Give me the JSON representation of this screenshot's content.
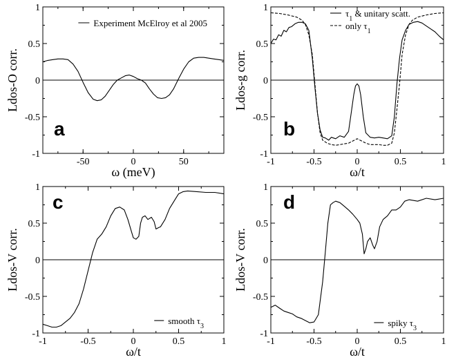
{
  "chart_data": [
    {
      "type": "line",
      "panel_label": "a",
      "xlabel": "ω (meV)",
      "ylabel": "Ldos-O corr.",
      "xlim": [
        -90,
        90
      ],
      "ylim": [
        -1,
        1
      ],
      "xticks": [
        -50,
        0,
        50
      ],
      "xtick_labels": [
        "-50",
        "0",
        "50"
      ],
      "yticks": [
        -1,
        -0.5,
        0,
        0.5,
        1
      ],
      "ytick_labels": [
        "-1",
        "-0.5",
        "0",
        "0.5",
        "1"
      ],
      "grid": false,
      "zero_line": true,
      "legend_position": "top-right",
      "series": [
        {
          "name": "Experiment McElroy et al 2005",
          "style": "solid",
          "x": [
            -90,
            -85,
            -80,
            -75,
            -70,
            -65,
            -60,
            -55,
            -50,
            -45,
            -40,
            -36,
            -32,
            -28,
            -24,
            -20,
            -16,
            -12,
            -8,
            -4,
            0,
            4,
            8,
            12,
            16,
            20,
            24,
            28,
            32,
            36,
            40,
            45,
            50,
            55,
            60,
            65,
            70,
            75,
            80,
            85,
            90
          ],
          "y": [
            0.25,
            0.27,
            0.28,
            0.29,
            0.29,
            0.28,
            0.22,
            0.12,
            -0.03,
            -0.17,
            -0.26,
            -0.28,
            -0.27,
            -0.22,
            -0.14,
            -0.06,
            0.0,
            0.03,
            0.06,
            0.07,
            0.05,
            0.02,
            0.0,
            -0.04,
            -0.12,
            -0.19,
            -0.24,
            -0.25,
            -0.24,
            -0.2,
            -0.12,
            0.02,
            0.15,
            0.25,
            0.3,
            0.31,
            0.31,
            0.3,
            0.29,
            0.28,
            0.27
          ]
        }
      ]
    },
    {
      "type": "line",
      "panel_label": "b",
      "xlabel": "ω/t",
      "ylabel": "Ldos-g corr.",
      "xlim": [
        -1,
        1
      ],
      "ylim": [
        -1,
        1
      ],
      "xticks": [
        -1,
        -0.5,
        0,
        0.5,
        1
      ],
      "xtick_labels": [
        "-1",
        "-0.5",
        "0",
        "0.5",
        "1"
      ],
      "yticks": [
        -1,
        -0.5,
        0,
        0.5,
        1
      ],
      "ytick_labels": [
        "-1",
        "-0.5",
        "0",
        "0.5",
        "1"
      ],
      "grid": false,
      "zero_line": true,
      "legend_position": "top-right",
      "series": [
        {
          "name_main": "τ",
          "name_sub": "1",
          "name_rest": " & unitary scatt.",
          "style": "solid",
          "x": [
            -1,
            -0.97,
            -0.94,
            -0.91,
            -0.88,
            -0.85,
            -0.82,
            -0.79,
            -0.76,
            -0.72,
            -0.68,
            -0.64,
            -0.6,
            -0.56,
            -0.52,
            -0.49,
            -0.46,
            -0.43,
            -0.4,
            -0.37,
            -0.33,
            -0.3,
            -0.25,
            -0.2,
            -0.15,
            -0.1,
            -0.07,
            -0.04,
            -0.02,
            0,
            0.02,
            0.04,
            0.07,
            0.1,
            0.15,
            0.2,
            0.25,
            0.3,
            0.35,
            0.4,
            0.43,
            0.46,
            0.49,
            0.52,
            0.56,
            0.6,
            0.65,
            0.7,
            0.75,
            0.8,
            0.85,
            0.9,
            0.95,
            1
          ],
          "y": [
            0.5,
            0.56,
            0.55,
            0.62,
            0.6,
            0.68,
            0.66,
            0.72,
            0.73,
            0.77,
            0.79,
            0.79,
            0.77,
            0.68,
            0.3,
            -0.1,
            -0.45,
            -0.68,
            -0.78,
            -0.79,
            -0.82,
            -0.78,
            -0.8,
            -0.76,
            -0.78,
            -0.7,
            -0.45,
            -0.2,
            -0.08,
            -0.05,
            -0.08,
            -0.2,
            -0.5,
            -0.72,
            -0.78,
            -0.79,
            -0.78,
            -0.79,
            -0.8,
            -0.76,
            -0.5,
            -0.05,
            0.3,
            0.55,
            0.68,
            0.76,
            0.79,
            0.8,
            0.78,
            0.74,
            0.7,
            0.66,
            0.6,
            0.55
          ]
        },
        {
          "name_main": "only τ",
          "name_sub": "1",
          "name_rest": "",
          "style": "dashed",
          "x": [
            -1,
            -0.9,
            -0.8,
            -0.7,
            -0.64,
            -0.6,
            -0.56,
            -0.52,
            -0.49,
            -0.46,
            -0.43,
            -0.4,
            -0.35,
            -0.3,
            -0.25,
            -0.2,
            -0.15,
            -0.1,
            -0.05,
            0,
            0.05,
            0.1,
            0.15,
            0.2,
            0.25,
            0.3,
            0.35,
            0.4,
            0.43,
            0.46,
            0.49,
            0.52,
            0.56,
            0.6,
            0.64,
            0.7,
            0.8,
            0.9,
            1
          ],
          "y": [
            0.92,
            0.91,
            0.89,
            0.86,
            0.82,
            0.76,
            0.62,
            0.35,
            -0.05,
            -0.45,
            -0.72,
            -0.82,
            -0.86,
            -0.88,
            -0.89,
            -0.88,
            -0.87,
            -0.86,
            -0.83,
            -0.8,
            -0.83,
            -0.86,
            -0.88,
            -0.88,
            -0.88,
            -0.89,
            -0.89,
            -0.86,
            -0.72,
            -0.4,
            -0.05,
            0.35,
            0.62,
            0.76,
            0.82,
            0.86,
            0.89,
            0.91,
            0.92
          ]
        }
      ]
    },
    {
      "type": "line",
      "panel_label": "c",
      "xlabel": "ω/t",
      "ylabel": "Ldos-V corr.",
      "xlim": [
        -1,
        1
      ],
      "ylim": [
        -1,
        1
      ],
      "xticks": [
        -1,
        -0.5,
        0,
        0.5,
        1
      ],
      "xtick_labels": [
        "-1",
        "-0.5",
        "0",
        "0.5",
        "1"
      ],
      "yticks": [
        -1,
        -0.5,
        0,
        0.5,
        1
      ],
      "ytick_labels": [
        "-1",
        "-0.5",
        "0",
        "0.5",
        "1"
      ],
      "grid": false,
      "zero_line": true,
      "legend_position": "bottom-right",
      "series": [
        {
          "name_main": "smooth τ",
          "name_sub": "3",
          "name_rest": "",
          "style": "solid",
          "x": [
            -1,
            -0.95,
            -0.9,
            -0.85,
            -0.8,
            -0.75,
            -0.7,
            -0.65,
            -0.6,
            -0.55,
            -0.5,
            -0.45,
            -0.4,
            -0.35,
            -0.3,
            -0.25,
            -0.2,
            -0.15,
            -0.1,
            -0.06,
            -0.02,
            0,
            0.03,
            0.06,
            0.08,
            0.1,
            0.13,
            0.16,
            0.2,
            0.23,
            0.25,
            0.28,
            0.3,
            0.35,
            0.4,
            0.45,
            0.5,
            0.55,
            0.6,
            0.7,
            0.8,
            0.9,
            1
          ],
          "y": [
            -0.88,
            -0.9,
            -0.92,
            -0.92,
            -0.9,
            -0.85,
            -0.8,
            -0.72,
            -0.6,
            -0.4,
            -0.15,
            0.1,
            0.28,
            0.35,
            0.45,
            0.6,
            0.7,
            0.72,
            0.68,
            0.55,
            0.38,
            0.3,
            0.28,
            0.32,
            0.5,
            0.58,
            0.6,
            0.55,
            0.58,
            0.52,
            0.42,
            0.44,
            0.45,
            0.55,
            0.7,
            0.8,
            0.9,
            0.93,
            0.94,
            0.93,
            0.92,
            0.92,
            0.9
          ]
        }
      ]
    },
    {
      "type": "line",
      "panel_label": "d",
      "xlabel": "ω/t",
      "ylabel": "Ldos-V corr.",
      "xlim": [
        -1,
        1
      ],
      "ylim": [
        -1,
        1
      ],
      "xticks": [
        -1,
        -0.5,
        0,
        0.5,
        1
      ],
      "xtick_labels": [
        "-1",
        "-0.5",
        "0",
        "0.5",
        "1"
      ],
      "yticks": [
        -1,
        -0.5,
        0,
        0.5,
        1
      ],
      "ytick_labels": [
        "-1",
        "-0.5",
        "0",
        "0.5",
        "1"
      ],
      "grid": false,
      "zero_line": true,
      "legend_position": "bottom-right",
      "series": [
        {
          "name_main": "spiky τ",
          "name_sub": "3",
          "name_rest": "",
          "style": "solid",
          "x": [
            -1,
            -0.95,
            -0.9,
            -0.85,
            -0.8,
            -0.75,
            -0.7,
            -0.65,
            -0.6,
            -0.55,
            -0.5,
            -0.45,
            -0.4,
            -0.37,
            -0.34,
            -0.31,
            -0.28,
            -0.25,
            -0.2,
            -0.15,
            -0.1,
            -0.05,
            0,
            0.03,
            0.06,
            0.08,
            0.1,
            0.12,
            0.15,
            0.18,
            0.2,
            0.23,
            0.26,
            0.3,
            0.35,
            0.4,
            0.45,
            0.5,
            0.55,
            0.6,
            0.7,
            0.8,
            0.9,
            1
          ],
          "y": [
            -0.65,
            -0.62,
            -0.66,
            -0.7,
            -0.72,
            -0.74,
            -0.78,
            -0.8,
            -0.83,
            -0.86,
            -0.85,
            -0.75,
            -0.3,
            0.1,
            0.5,
            0.75,
            0.78,
            0.8,
            0.78,
            0.73,
            0.68,
            0.62,
            0.55,
            0.5,
            0.35,
            0.08,
            0.15,
            0.25,
            0.3,
            0.2,
            0.15,
            0.25,
            0.45,
            0.55,
            0.6,
            0.68,
            0.68,
            0.72,
            0.8,
            0.82,
            0.8,
            0.84,
            0.82,
            0.84
          ]
        }
      ]
    }
  ]
}
